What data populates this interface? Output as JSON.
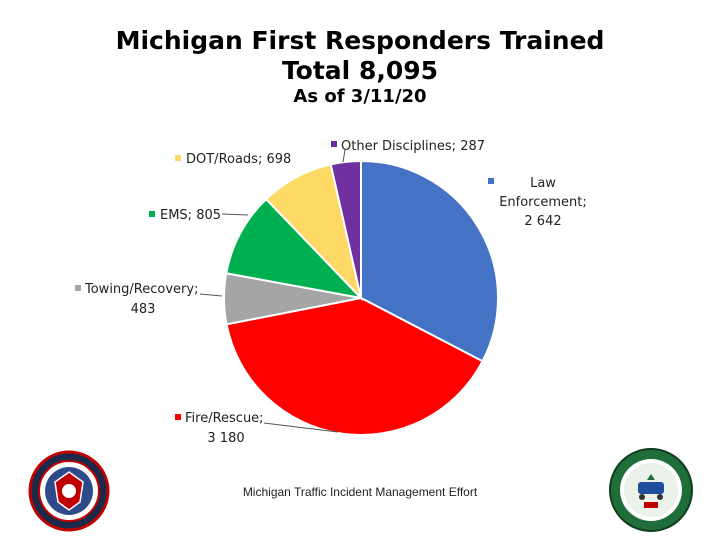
{
  "header": {
    "title_line1": "Michigan First Responders Trained",
    "title_line2": "Total 8,095",
    "title_line3": "As of 3/11/20"
  },
  "footer": {
    "text": "Michigan Traffic Incident Management Effort"
  },
  "chart_data": {
    "type": "pie",
    "title": "Michigan First Responders Trained Total 8,095 As of 3/11/20",
    "start": "12 o'clock",
    "direction": "clockwise",
    "slices": [
      {
        "name": "Law Enforcement",
        "value_text": "2 642",
        "value": 2642,
        "color": "#4472C4"
      },
      {
        "name": "Fire/Rescue",
        "value_text": "3 180",
        "value": 3180,
        "color": "#FF0000"
      },
      {
        "name": "Towing/Recovery",
        "value_text": "483",
        "value": 483,
        "color": "#A5A5A5"
      },
      {
        "name": "EMS",
        "value_text": "805",
        "value": 805,
        "color": "#00B050"
      },
      {
        "name": "DOT/Roads",
        "value_text": "698",
        "value": 698,
        "color": "#FFD966"
      },
      {
        "name": "Other Disciplines",
        "value_text": "287",
        "value": 287,
        "color": "#7030A0"
      }
    ],
    "legend": "none",
    "data_labels": "outside with leader lines"
  }
}
